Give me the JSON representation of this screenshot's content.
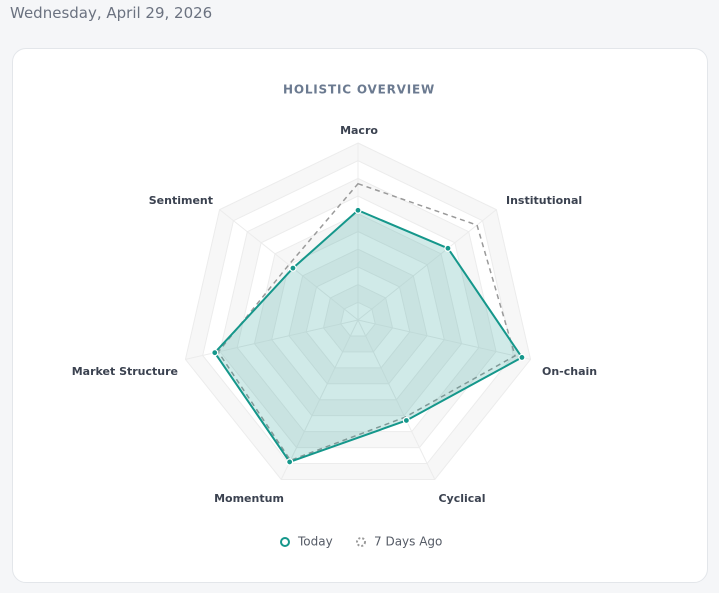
{
  "date": "Wednesday, April 29, 2026",
  "chart_data": {
    "type": "radar",
    "title": "HOLISTIC OVERVIEW",
    "categories": [
      "Macro",
      "Institutional",
      "On-chain",
      "Cyclical",
      "Momentum",
      "Market Structure",
      "Sentiment"
    ],
    "rlim": [
      0,
      100
    ],
    "series": [
      {
        "name": "Today",
        "color": "#15978b",
        "values": [
          62,
          65,
          95,
          63,
          89,
          83,
          47
        ]
      },
      {
        "name": "7 Days Ago",
        "color": "#9a9a9a",
        "values": [
          77,
          86,
          91,
          61,
          88,
          81,
          50
        ]
      }
    ]
  }
}
